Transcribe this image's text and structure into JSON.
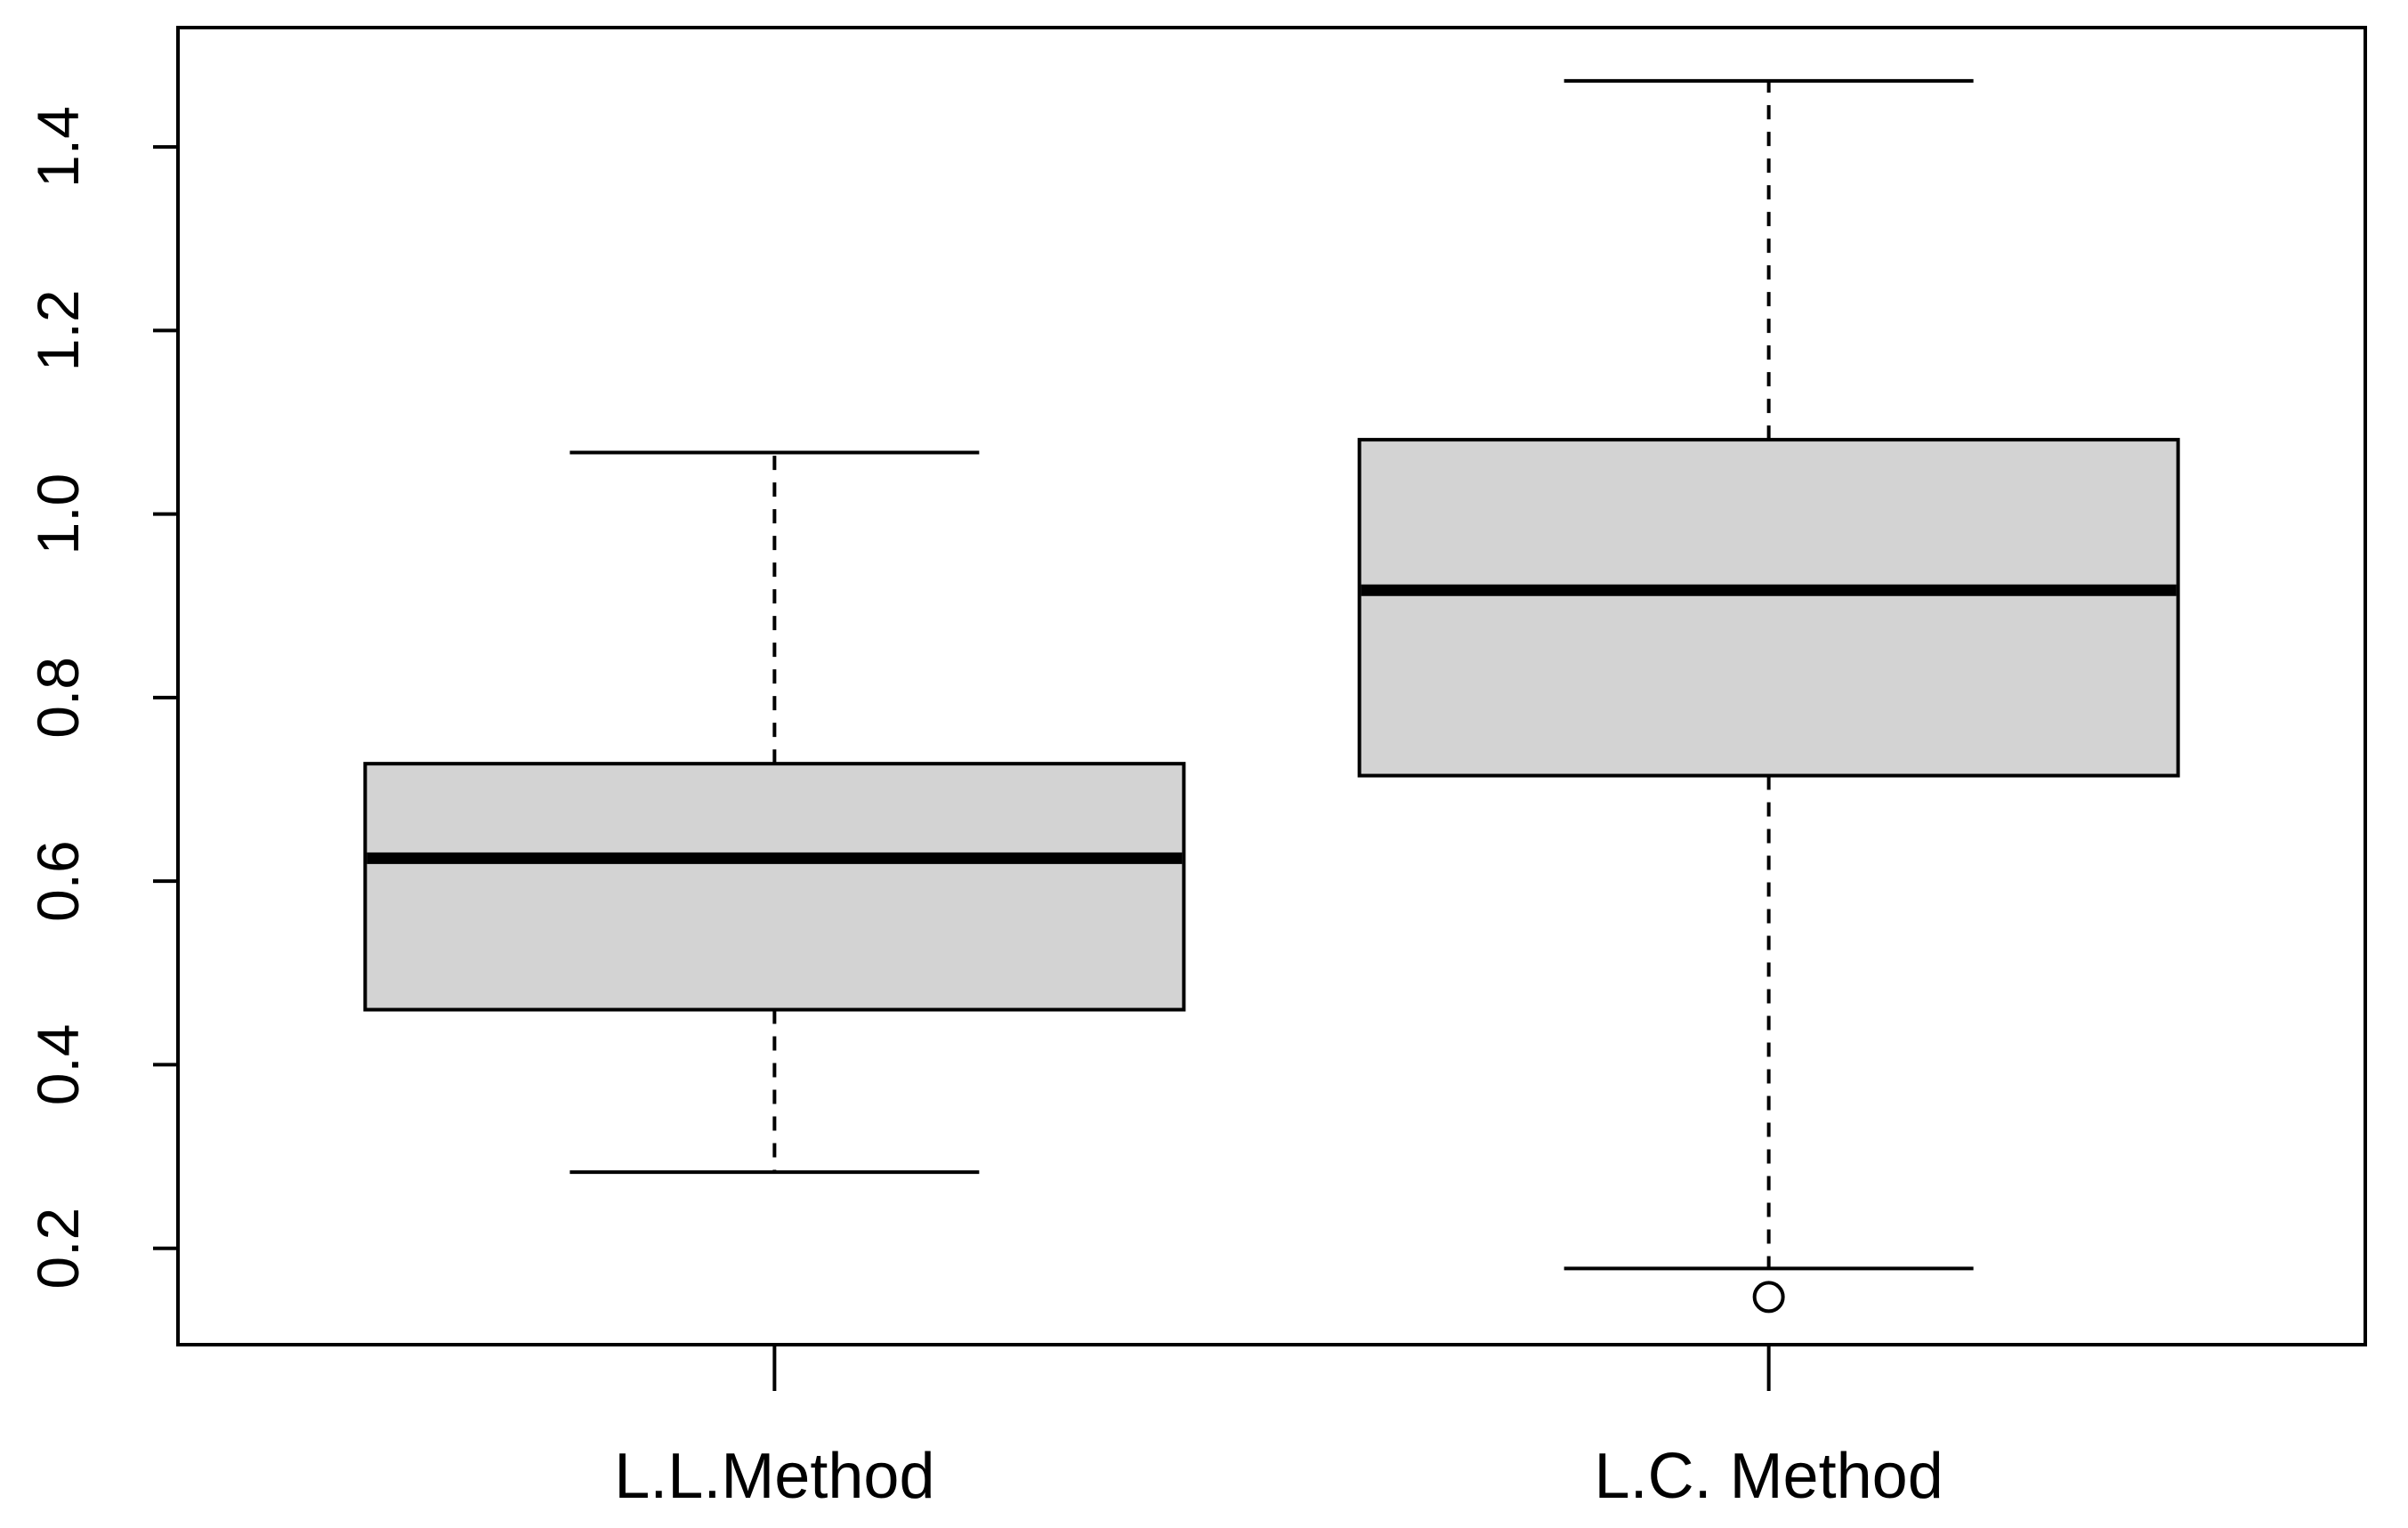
{
  "chart_data": {
    "type": "boxplot",
    "title": "",
    "xlabel": "",
    "ylabel": "",
    "ylim": [
      0.095,
      1.53
    ],
    "y_ticks": [
      0.2,
      0.4,
      0.6,
      0.8,
      1.0,
      1.2,
      1.4
    ],
    "y_tick_labels": [
      "0.2",
      "0.4",
      "0.6",
      "0.8",
      "1.0",
      "1.2",
      "1.4"
    ],
    "grid": false,
    "legend": "none",
    "colors": {
      "box_fill": "#d3d3d3",
      "stroke": "#000000",
      "background": "#ffffff"
    },
    "categories": [
      "L.L.Method",
      "L.C. Method"
    ],
    "boxes": [
      {
        "label": "L.L.Method",
        "min": 0.283,
        "q1": 0.46,
        "median": 0.625,
        "q3": 0.728,
        "max": 1.067,
        "outliers": []
      },
      {
        "label": "L.C. Method",
        "min": 0.178,
        "q1": 0.715,
        "median": 0.917,
        "q3": 1.081,
        "max": 1.472,
        "outliers": [
          0.147
        ]
      }
    ]
  }
}
